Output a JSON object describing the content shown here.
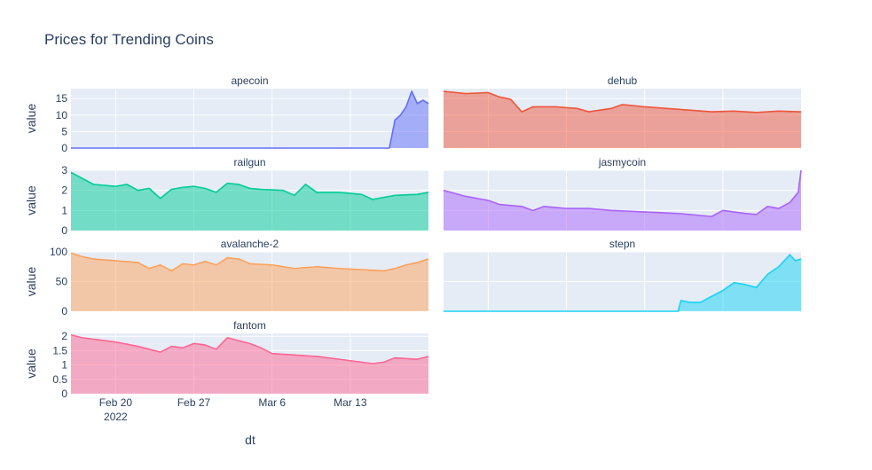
{
  "chart_data": {
    "type": "area",
    "title": "Prices for Trending Coins",
    "xlabel": "dt",
    "ylabel": "value",
    "x_tick_labels": [
      "Feb 20",
      "Feb 27",
      "Mar 6",
      "Mar 13"
    ],
    "x_tick_year": "2022",
    "x_range": [
      "2022-02-16",
      "2022-03-20"
    ],
    "grid": true,
    "legend": "none",
    "panels": [
      {
        "name": "apecoin",
        "color": "#636efa",
        "ylim": [
          0,
          18
        ],
        "yticks": [
          "0",
          "5",
          "10",
          "15"
        ],
        "ytick_values": [
          0,
          5,
          10,
          15
        ],
        "show_ylabel": true,
        "show_yticks": true,
        "points": [
          [
            "2022-02-16",
            0
          ],
          [
            "2022-03-16",
            0
          ],
          [
            "2022-03-16 12:00",
            0
          ],
          [
            "2022-03-17",
            8.5
          ],
          [
            "2022-03-17 12:00",
            10
          ],
          [
            "2022-03-18",
            12.5
          ],
          [
            "2022-03-18 12:00",
            17.2
          ],
          [
            "2022-03-19",
            13.5
          ],
          [
            "2022-03-19 12:00",
            14.5
          ],
          [
            "2022-03-20",
            13.5
          ]
        ]
      },
      {
        "name": "dehub",
        "color": "#ef553b",
        "ylim": [
          0,
          18
        ],
        "yticks": [
          "0",
          "5",
          "10",
          "15"
        ],
        "ytick_values": [
          0,
          5,
          10,
          15
        ],
        "show_ylabel": false,
        "show_yticks": false,
        "points": [
          [
            "2022-02-16",
            17.2
          ],
          [
            "2022-02-18",
            16.5
          ],
          [
            "2022-02-20",
            16.8
          ],
          [
            "2022-02-21",
            15.5
          ],
          [
            "2022-02-22",
            14.8
          ],
          [
            "2022-02-23",
            11.0
          ],
          [
            "2022-02-24",
            12.5
          ],
          [
            "2022-02-26",
            12.5
          ],
          [
            "2022-02-28",
            12.0
          ],
          [
            "2022-03-01",
            11.0
          ],
          [
            "2022-03-03",
            12.0
          ],
          [
            "2022-03-04",
            13.2
          ],
          [
            "2022-03-06",
            12.5
          ],
          [
            "2022-03-08",
            12.0
          ],
          [
            "2022-03-10",
            11.5
          ],
          [
            "2022-03-12",
            11.0
          ],
          [
            "2022-03-14",
            11.2
          ],
          [
            "2022-03-16",
            10.8
          ],
          [
            "2022-03-18",
            11.2
          ],
          [
            "2022-03-20",
            11.0
          ]
        ]
      },
      {
        "name": "railgun",
        "color": "#00cc96",
        "ylim": [
          0,
          3
        ],
        "yticks": [
          "0",
          "1",
          "2",
          "3"
        ],
        "ytick_values": [
          0,
          1,
          2,
          3
        ],
        "show_ylabel": true,
        "show_yticks": true,
        "points": [
          [
            "2022-02-16",
            2.9
          ],
          [
            "2022-02-17",
            2.6
          ],
          [
            "2022-02-18",
            2.3
          ],
          [
            "2022-02-19",
            2.25
          ],
          [
            "2022-02-20",
            2.2
          ],
          [
            "2022-02-21",
            2.3
          ],
          [
            "2022-02-22",
            2.0
          ],
          [
            "2022-02-23",
            2.1
          ],
          [
            "2022-02-24",
            1.6
          ],
          [
            "2022-02-25",
            2.05
          ],
          [
            "2022-02-26",
            2.15
          ],
          [
            "2022-02-27",
            2.2
          ],
          [
            "2022-02-28",
            2.1
          ],
          [
            "2022-03-01",
            1.9
          ],
          [
            "2022-03-02",
            2.35
          ],
          [
            "2022-03-03",
            2.3
          ],
          [
            "2022-03-04",
            2.1
          ],
          [
            "2022-03-05",
            2.05
          ],
          [
            "2022-03-07",
            2.0
          ],
          [
            "2022-03-08",
            1.75
          ],
          [
            "2022-03-09",
            2.3
          ],
          [
            "2022-03-10",
            1.9
          ],
          [
            "2022-03-12",
            1.9
          ],
          [
            "2022-03-14",
            1.8
          ],
          [
            "2022-03-15",
            1.55
          ],
          [
            "2022-03-17",
            1.75
          ],
          [
            "2022-03-19",
            1.8
          ],
          [
            "2022-03-20",
            1.9
          ]
        ]
      },
      {
        "name": "jasmycoin",
        "color": "#ab63fa",
        "ylim": [
          0,
          3
        ],
        "yticks": [
          "0",
          "1",
          "2",
          "3"
        ],
        "ytick_values": [
          0,
          1,
          2,
          3
        ],
        "show_ylabel": false,
        "show_yticks": false,
        "points": [
          [
            "2022-02-16",
            2.0
          ],
          [
            "2022-02-18",
            1.7
          ],
          [
            "2022-02-20",
            1.5
          ],
          [
            "2022-02-21",
            1.3
          ],
          [
            "2022-02-23",
            1.2
          ],
          [
            "2022-02-24",
            1.0
          ],
          [
            "2022-02-25",
            1.2
          ],
          [
            "2022-02-27",
            1.1
          ],
          [
            "2022-03-01",
            1.1
          ],
          [
            "2022-03-03",
            1.0
          ],
          [
            "2022-03-05",
            0.95
          ],
          [
            "2022-03-07",
            0.9
          ],
          [
            "2022-03-09",
            0.85
          ],
          [
            "2022-03-11",
            0.75
          ],
          [
            "2022-03-12",
            0.7
          ],
          [
            "2022-03-13",
            1.0
          ],
          [
            "2022-03-15",
            0.85
          ],
          [
            "2022-03-16",
            0.8
          ],
          [
            "2022-03-17",
            1.2
          ],
          [
            "2022-03-18",
            1.1
          ],
          [
            "2022-03-19",
            1.4
          ],
          [
            "2022-03-19 18:00",
            1.9
          ],
          [
            "2022-03-20",
            3.0
          ]
        ]
      },
      {
        "name": "avalanche-2",
        "color": "#ffa15a",
        "ylim": [
          0,
          100
        ],
        "yticks": [
          "0",
          "50",
          "100"
        ],
        "ytick_values": [
          0,
          50,
          100
        ],
        "show_ylabel": true,
        "show_yticks": true,
        "points": [
          [
            "2022-02-16",
            98
          ],
          [
            "2022-02-17",
            92
          ],
          [
            "2022-02-18",
            88
          ],
          [
            "2022-02-20",
            85
          ],
          [
            "2022-02-22",
            82
          ],
          [
            "2022-02-23",
            72
          ],
          [
            "2022-02-24",
            78
          ],
          [
            "2022-02-25",
            68
          ],
          [
            "2022-02-26",
            80
          ],
          [
            "2022-02-27",
            78
          ],
          [
            "2022-02-28",
            84
          ],
          [
            "2022-03-01",
            78
          ],
          [
            "2022-03-02",
            90
          ],
          [
            "2022-03-03",
            88
          ],
          [
            "2022-03-04",
            80
          ],
          [
            "2022-03-06",
            78
          ],
          [
            "2022-03-08",
            72
          ],
          [
            "2022-03-10",
            75
          ],
          [
            "2022-03-12",
            72
          ],
          [
            "2022-03-14",
            70
          ],
          [
            "2022-03-16",
            68
          ],
          [
            "2022-03-17",
            72
          ],
          [
            "2022-03-18",
            78
          ],
          [
            "2022-03-19",
            82
          ],
          [
            "2022-03-20",
            88
          ]
        ]
      },
      {
        "name": "stepn",
        "color": "#19d3f3",
        "ylim": [
          0,
          100
        ],
        "yticks": [
          "0",
          "50",
          "100"
        ],
        "ytick_values": [
          0,
          50,
          100
        ],
        "show_ylabel": false,
        "show_yticks": false,
        "points": [
          [
            "2022-02-16",
            0
          ],
          [
            "2022-03-09",
            0
          ],
          [
            "2022-03-09 06:00",
            18
          ],
          [
            "2022-03-10",
            15
          ],
          [
            "2022-03-11",
            15
          ],
          [
            "2022-03-12",
            25
          ],
          [
            "2022-03-13",
            35
          ],
          [
            "2022-03-14",
            48
          ],
          [
            "2022-03-15",
            45
          ],
          [
            "2022-03-16",
            40
          ],
          [
            "2022-03-17",
            62
          ],
          [
            "2022-03-18",
            75
          ],
          [
            "2022-03-19",
            95
          ],
          [
            "2022-03-19 12:00",
            85
          ],
          [
            "2022-03-20",
            88
          ]
        ]
      },
      {
        "name": "fantom",
        "color": "#ff6692",
        "ylim": [
          0,
          2.1
        ],
        "yticks": [
          "0",
          "0.5",
          "1",
          "1.5",
          "2"
        ],
        "ytick_values": [
          0,
          0.5,
          1,
          1.5,
          2
        ],
        "show_ylabel": true,
        "show_yticks": true,
        "points": [
          [
            "2022-02-16",
            2.05
          ],
          [
            "2022-02-17",
            1.95
          ],
          [
            "2022-02-19",
            1.85
          ],
          [
            "2022-02-20",
            1.8
          ],
          [
            "2022-02-22",
            1.65
          ],
          [
            "2022-02-23",
            1.55
          ],
          [
            "2022-02-24",
            1.45
          ],
          [
            "2022-02-25",
            1.65
          ],
          [
            "2022-02-26",
            1.6
          ],
          [
            "2022-02-27",
            1.75
          ],
          [
            "2022-02-28",
            1.7
          ],
          [
            "2022-03-01",
            1.55
          ],
          [
            "2022-03-02",
            1.95
          ],
          [
            "2022-03-03",
            1.85
          ],
          [
            "2022-03-04",
            1.75
          ],
          [
            "2022-03-05",
            1.6
          ],
          [
            "2022-03-06",
            1.4
          ],
          [
            "2022-03-08",
            1.35
          ],
          [
            "2022-03-10",
            1.3
          ],
          [
            "2022-03-12",
            1.2
          ],
          [
            "2022-03-14",
            1.1
          ],
          [
            "2022-03-15",
            1.05
          ],
          [
            "2022-03-16",
            1.1
          ],
          [
            "2022-03-17",
            1.25
          ],
          [
            "2022-03-19",
            1.2
          ],
          [
            "2022-03-20",
            1.3
          ]
        ]
      }
    ]
  }
}
